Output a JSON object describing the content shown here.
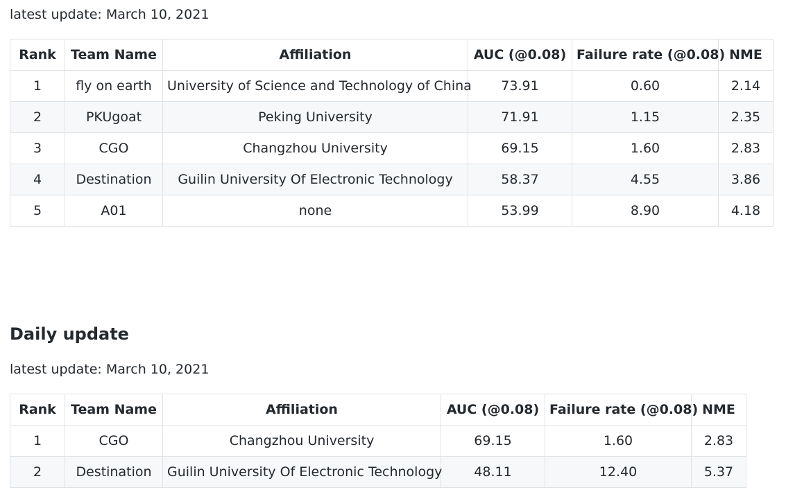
{
  "top": {
    "update_text": "latest update: March 10, 2021",
    "columns": [
      "Rank",
      "Team Name",
      "Affiliation",
      "AUC (@0.08)",
      "Failure rate (@0.08)",
      "NME"
    ],
    "rows": [
      [
        "1",
        "fly on earth",
        "University of Science and Technology of China",
        "73.91",
        "0.60",
        "2.14"
      ],
      [
        "2",
        "PKUgoat",
        "Peking University",
        "71.91",
        "1.15",
        "2.35"
      ],
      [
        "3",
        "CGO",
        "Changzhou University",
        "69.15",
        "1.60",
        "2.83"
      ],
      [
        "4",
        "Destination",
        "Guilin University Of Electronic Technology",
        "58.37",
        "4.55",
        "3.86"
      ],
      [
        "5",
        "A01",
        "none",
        "53.99",
        "8.90",
        "4.18"
      ]
    ]
  },
  "daily": {
    "heading": "Daily update",
    "update_text": "latest update: March 10, 2021",
    "columns": [
      "Rank",
      "Team Name",
      "Affiliation",
      "AUC (@0.08)",
      "Failure rate (@0.08)",
      "NME"
    ],
    "rows": [
      [
        "1",
        "CGO",
        "Changzhou University",
        "69.15",
        "1.60",
        "2.83"
      ],
      [
        "2",
        "Destination",
        "Guilin University Of Electronic Technology",
        "48.11",
        "12.40",
        "5.37"
      ]
    ]
  }
}
